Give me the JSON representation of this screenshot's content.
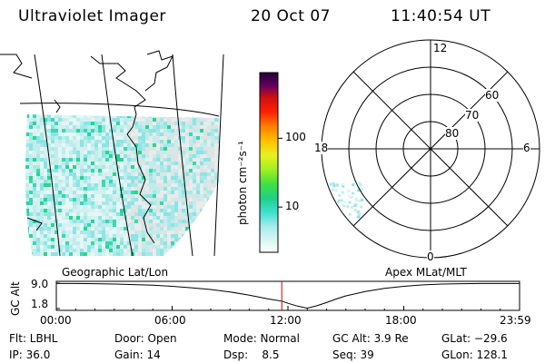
{
  "header": {
    "instrument": "Ultraviolet Imager",
    "date": "20 Oct 07",
    "time": "11:40:54 UT"
  },
  "map": {
    "left_label": "Geographic Lat/Lon",
    "right_label": "Apex MLat/MLT"
  },
  "colorbar": {
    "unit_label": "photon cm⁻²s⁻¹",
    "ticks": [
      {
        "value": 10,
        "label": "10"
      },
      {
        "value": 100,
        "label": "100"
      }
    ],
    "range": [
      2.2,
      900
    ],
    "scale": "log",
    "colors": [
      "#ffffff",
      "#d8f4f4",
      "#a8ecec",
      "#40e0d0",
      "#20d088",
      "#40e040",
      "#a0f020",
      "#e8f020",
      "#ffc000",
      "#ff8000",
      "#ff2000",
      "#d01010",
      "#a00040",
      "#600060",
      "#200030"
    ]
  },
  "polar": {
    "mlt_labels": {
      "top": "12",
      "bottom": "0",
      "left": "18",
      "right": "6"
    },
    "lat_labels": [
      "60",
      "70",
      "80"
    ],
    "lat_values": [
      60,
      70,
      80
    ]
  },
  "chart_data": {
    "type": "line",
    "ylabel": "GC Alt",
    "yticks": [
      "9.0",
      "1.8"
    ],
    "ylim": [
      1.8,
      9.0
    ],
    "xticks": [
      "00:00",
      "06:00",
      "12:00",
      "18:00",
      "23:59"
    ],
    "xlim_hours": [
      0,
      24
    ],
    "x_hours": [
      0,
      1,
      2,
      3,
      4,
      5,
      6,
      7,
      8,
      9,
      10,
      11,
      11.68,
      12,
      12.5,
      13,
      13.5,
      14,
      14.5,
      15,
      16,
      17,
      18,
      19,
      20,
      21,
      22,
      23,
      24
    ],
    "y": [
      8.9,
      8.9,
      8.85,
      8.75,
      8.6,
      8.4,
      8.1,
      7.7,
      7.2,
      6.5,
      5.6,
      4.5,
      3.9,
      3.3,
      2.5,
      1.9,
      2.6,
      3.5,
      4.5,
      5.4,
      6.6,
      7.5,
      8.1,
      8.5,
      8.75,
      8.85,
      8.9,
      8.9,
      8.9
    ],
    "marker_hours": 11.68,
    "marker_color": "#d00000"
  },
  "info": {
    "flt": "Flt: LBHL",
    "door": "Door: Open",
    "mode": "Mode: Normal",
    "gc_alt": "GC Alt: 3.9 Re",
    "glat": "GLat: −29.6",
    "ip": "IP: 36.0",
    "gain": "Gain: 14",
    "dsp": "Dsp:    8.5",
    "seq": "Seq: 39",
    "glon": "GLon: 128.1"
  }
}
